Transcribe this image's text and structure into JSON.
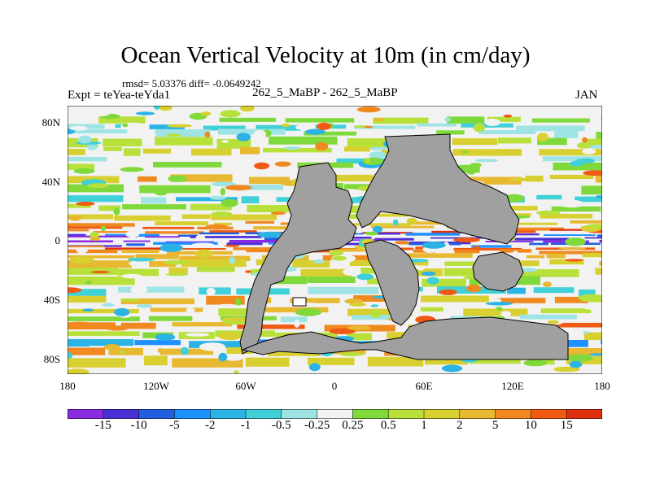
{
  "title": "Ocean Vertical Velocity at 10m (in cm/day)",
  "stats": "rmsd= 5.03376  diff= -0.0649242",
  "experiment": "Expt = teYea-teYda1",
  "center_label": "262_5_MaBP - 262_5_MaBP",
  "month": "JAN",
  "lat_labels": [
    "80N",
    "40N",
    "0",
    "40S",
    "80S"
  ],
  "lon_labels": [
    "180",
    "120W",
    "60W",
    "0",
    "60E",
    "120E",
    "180"
  ],
  "colorbar": {
    "labels": [
      "-15",
      "-10",
      "-5",
      "-2",
      "-1",
      "-0.5",
      "-0.25",
      "0.25",
      "0.5",
      "1",
      "2",
      "5",
      "10",
      "15"
    ],
    "colors": [
      "#8a2be2",
      "#4b2fd6",
      "#1f5fe0",
      "#1e90ff",
      "#2bb3e6",
      "#40d0d8",
      "#9fe4e4",
      "#f2f2f2",
      "#7fd93a",
      "#b8e03a",
      "#d8d030",
      "#e8b830",
      "#f08a20",
      "#f05a14",
      "#e03010"
    ]
  },
  "land_color": "#a0a0a0"
}
